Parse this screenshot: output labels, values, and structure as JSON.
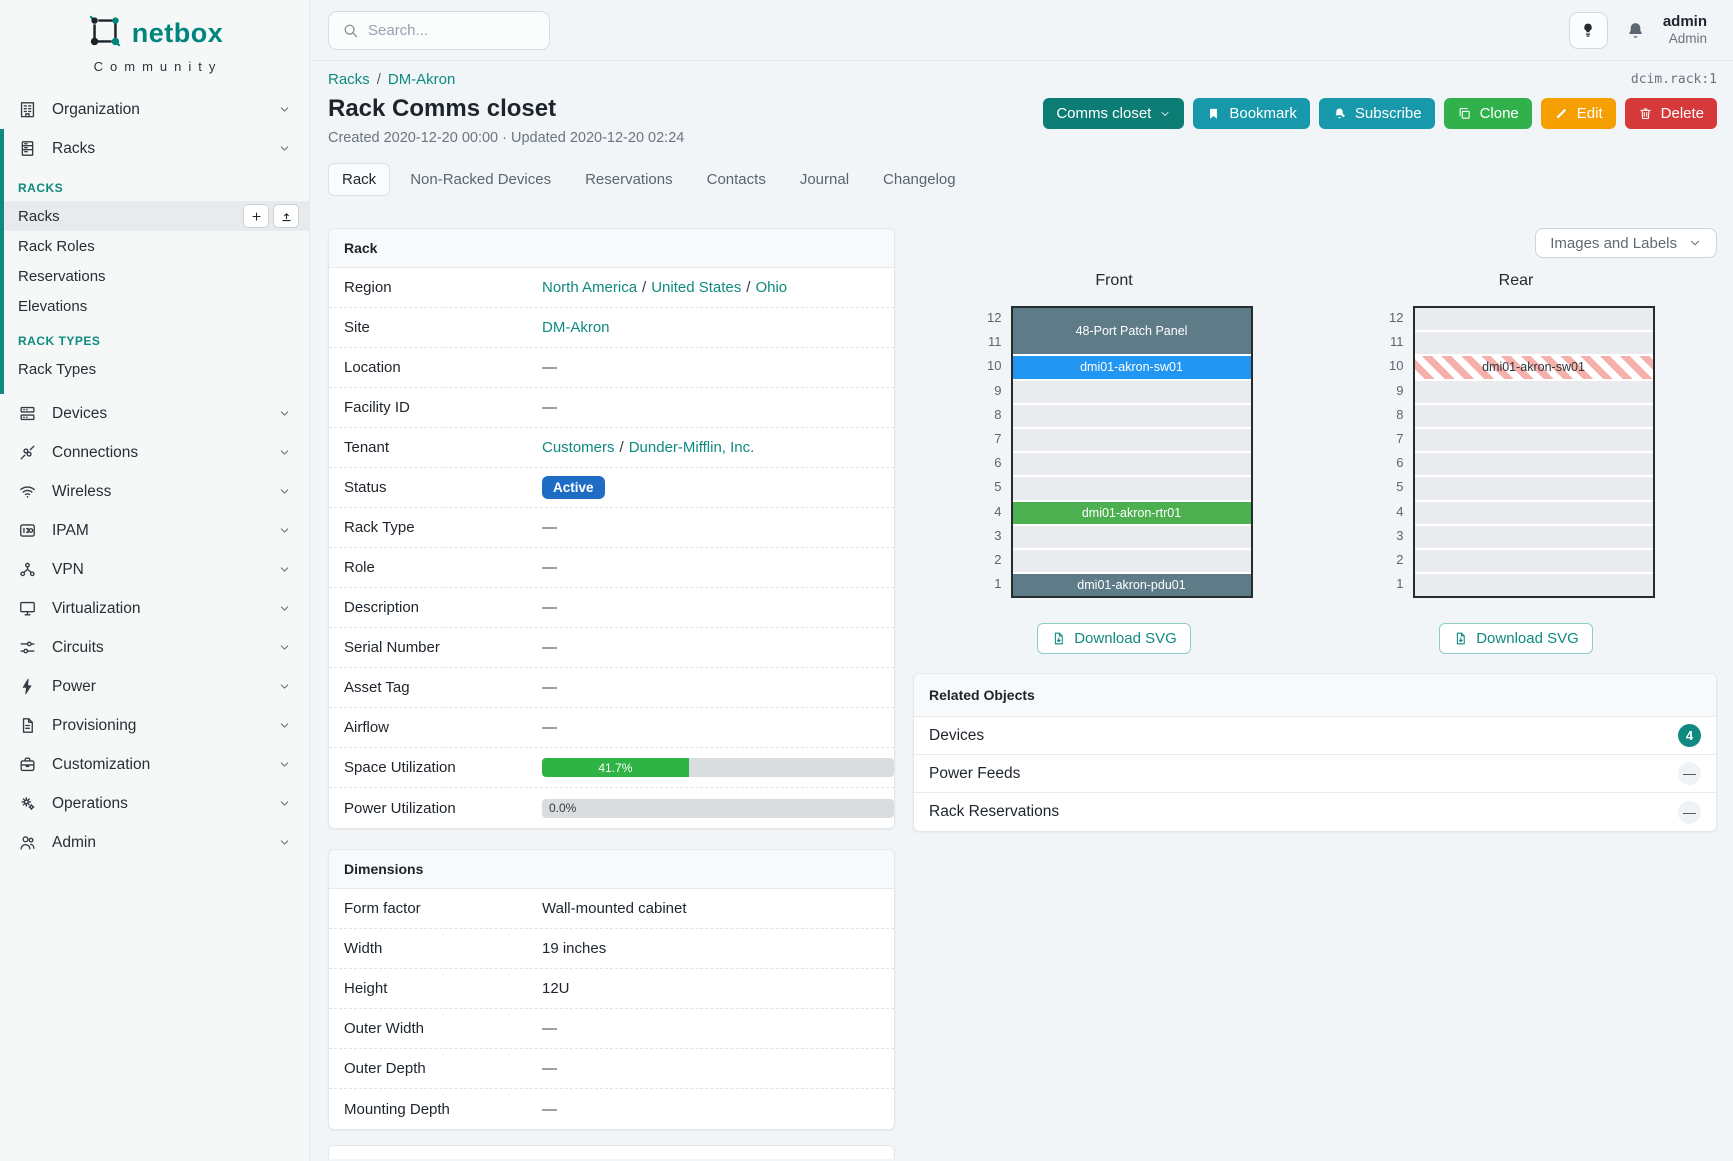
{
  "brand": {
    "name": "netbox",
    "community": "Community"
  },
  "topbar": {
    "search_placeholder": "Search...",
    "username": "admin",
    "role": "Admin"
  },
  "sidebar": {
    "items_before": [
      {
        "label": "Organization",
        "icon": "building"
      }
    ],
    "expanded": {
      "parent": {
        "label": "Racks",
        "icon": "rack"
      },
      "sections": [
        {
          "header": "RACKS",
          "items": [
            {
              "label": "Racks",
              "active": true
            },
            {
              "label": "Rack Roles"
            },
            {
              "label": "Reservations"
            },
            {
              "label": "Elevations"
            }
          ]
        },
        {
          "header": "RACK TYPES",
          "items": [
            {
              "label": "Rack Types"
            }
          ]
        }
      ]
    },
    "items_after": [
      {
        "label": "Devices",
        "icon": "server"
      },
      {
        "label": "Connections",
        "icon": "plug"
      },
      {
        "label": "Wireless",
        "icon": "wifi"
      },
      {
        "label": "IPAM",
        "icon": "ipam"
      },
      {
        "label": "VPN",
        "icon": "vpn"
      },
      {
        "label": "Virtualization",
        "icon": "monitor"
      },
      {
        "label": "Circuits",
        "icon": "circuit"
      },
      {
        "label": "Power",
        "icon": "bolt"
      },
      {
        "label": "Provisioning",
        "icon": "document"
      },
      {
        "label": "Customization",
        "icon": "briefcase"
      },
      {
        "label": "Operations",
        "icon": "gears"
      },
      {
        "label": "Admin",
        "icon": "users"
      }
    ]
  },
  "header": {
    "breadcrumb": [
      "Racks",
      "DM-Akron"
    ],
    "object_id": "dcim.rack:1",
    "title": "Rack Comms closet",
    "meta": "Created 2020-12-20 00:00 · Updated 2020-12-20 02:24",
    "actions": {
      "group_label": "Comms closet",
      "bookmark": "Bookmark",
      "subscribe": "Subscribe",
      "clone": "Clone",
      "edit": "Edit",
      "delete": "Delete"
    }
  },
  "tabs": [
    {
      "label": "Rack",
      "active": true
    },
    {
      "label": "Non-Racked Devices"
    },
    {
      "label": "Reservations"
    },
    {
      "label": "Contacts"
    },
    {
      "label": "Journal"
    },
    {
      "label": "Changelog"
    }
  ],
  "rack_panel": {
    "title": "Rack",
    "rows": [
      {
        "label": "Region",
        "kind": "links",
        "links": [
          "North America",
          "United States",
          "Ohio"
        ]
      },
      {
        "label": "Site",
        "kind": "links",
        "links": [
          "DM-Akron"
        ]
      },
      {
        "label": "Location",
        "kind": "dash"
      },
      {
        "label": "Facility ID",
        "kind": "dash"
      },
      {
        "label": "Tenant",
        "kind": "links",
        "links": [
          "Customers",
          "Dunder-Mifflin, Inc."
        ]
      },
      {
        "label": "Status",
        "kind": "badge",
        "badge": {
          "text": "Active",
          "color": "#1f6cc5"
        }
      },
      {
        "label": "Rack Type",
        "kind": "dash"
      },
      {
        "label": "Role",
        "kind": "dash"
      },
      {
        "label": "Description",
        "kind": "dash"
      },
      {
        "label": "Serial Number",
        "kind": "dash"
      },
      {
        "label": "Asset Tag",
        "kind": "dash"
      },
      {
        "label": "Airflow",
        "kind": "dash"
      },
      {
        "label": "Space Utilization",
        "kind": "progress",
        "progress": {
          "percent": 41.7,
          "label": "41.7%",
          "fill": "#2fb344"
        }
      },
      {
        "label": "Power Utilization",
        "kind": "progress",
        "percent_zero": true,
        "progress": {
          "percent": 0.0,
          "label": "0.0%",
          "fill": "#2fb344"
        }
      }
    ]
  },
  "dimensions_panel": {
    "title": "Dimensions",
    "rows": [
      {
        "label": "Form factor",
        "value": "Wall-mounted cabinet"
      },
      {
        "label": "Width",
        "value": "19 inches"
      },
      {
        "label": "Height",
        "value": "12U"
      },
      {
        "label": "Outer Width",
        "value": ""
      },
      {
        "label": "Outer Depth",
        "value": ""
      },
      {
        "label": "Mounting Depth",
        "value": ""
      }
    ]
  },
  "elevations": {
    "options_label": "Images and Labels",
    "download_label": "Download SVG",
    "unit_count": 12,
    "views": [
      {
        "title": "Front",
        "devices": [
          {
            "name": "48-Port Patch Panel",
            "top_unit": 12,
            "u_height": 2,
            "style": "gray"
          },
          {
            "name": "dmi01-akron-sw01",
            "top_unit": 10,
            "u_height": 1,
            "style": "blue"
          },
          {
            "name": "dmi01-akron-rtr01",
            "top_unit": 4,
            "u_height": 1,
            "style": "green"
          },
          {
            "name": "dmi01-akron-pdu01",
            "top_unit": 1,
            "u_height": 1,
            "style": "gray"
          }
        ]
      },
      {
        "title": "Rear",
        "devices": [
          {
            "name": "dmi01-akron-sw01",
            "top_unit": 10,
            "u_height": 1,
            "style": "hatched"
          }
        ]
      }
    ]
  },
  "related_objects": {
    "title": "Related Objects",
    "rows": [
      {
        "label": "Devices",
        "count": "4"
      },
      {
        "label": "Power Feeds",
        "count": ""
      },
      {
        "label": "Rack Reservations",
        "count": ""
      }
    ]
  },
  "colors": {
    "accent_teal": "#0f8a80",
    "logo_teal": "#00857e",
    "status_active_blue": "#1f6cc5",
    "progress_green": "#2fb344",
    "button_group_teal": "#0c7d74",
    "button_cyan": "#1798ab",
    "button_green": "#30b14c",
    "button_amber": "#f59f00",
    "button_red": "#d63939",
    "device_styles": {
      "gray": "#5e7b88",
      "blue": "#2196f3",
      "green": "#4caf50"
    },
    "hatch_stripe": "#f6b0ab",
    "empty_unit": "#e9ebee"
  }
}
